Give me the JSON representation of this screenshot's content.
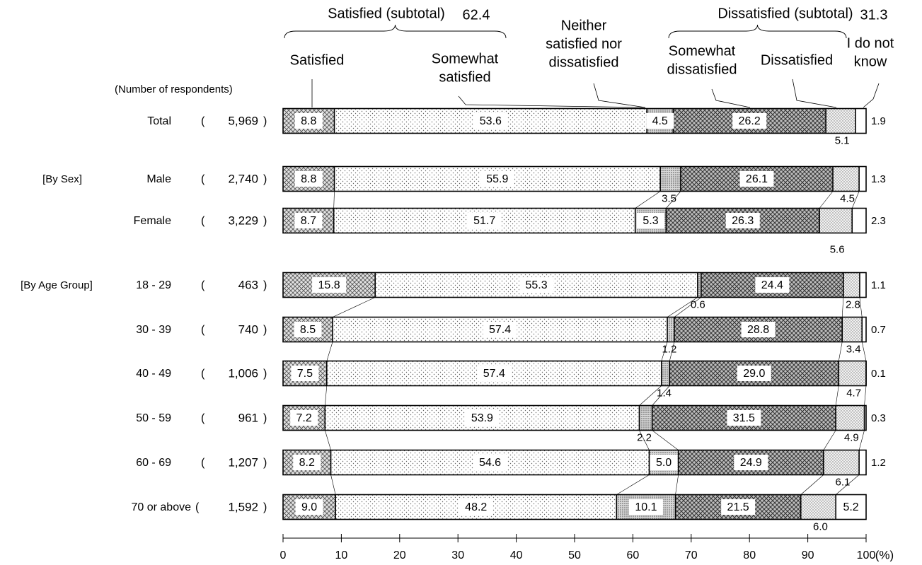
{
  "chart_data": {
    "type": "bar",
    "stacked": "100%",
    "orientation": "horizontal",
    "respondents_header": "(Number of respondents)",
    "series": [
      {
        "name": "Satisfied",
        "key": "s",
        "pattern": "cross"
      },
      {
        "name": "Somewhat satisfied",
        "key": "ss",
        "pattern": "dots"
      },
      {
        "name": "Neither satisfied nor dissatisfied",
        "key": "n",
        "pattern": "dense"
      },
      {
        "name": "Somewhat dissatisfied",
        "key": "sd",
        "pattern": "crossdark"
      },
      {
        "name": "Dissatisfied",
        "key": "d",
        "pattern": "dotsdense"
      },
      {
        "name": "I do not know",
        "key": "dk",
        "pattern": "white"
      }
    ],
    "legend_lines": [
      [
        "Satisfied"
      ],
      [
        "Somewhat",
        "satisfied"
      ],
      [
        "Neither",
        "satisfied nor",
        "dissatisfied"
      ],
      [
        "Somewhat",
        "dissatisfied"
      ],
      [
        "Dissatisfied"
      ],
      [
        "I do not",
        "know"
      ]
    ],
    "subtotals": [
      {
        "label": "Satisfied (subtotal)",
        "value": "62.4"
      },
      {
        "label": "Dissatisfied (subtotal)",
        "value": "31.3"
      }
    ],
    "groups": [
      "[By Sex]",
      "[By Age Group]"
    ],
    "rows": [
      {
        "label": "Total",
        "group": "",
        "n": "5,969",
        "values": [
          8.8,
          53.6,
          4.5,
          26.2,
          5.1,
          1.9
        ],
        "labels": [
          "8.8",
          "53.6",
          "4.5",
          "26.2",
          "5.1",
          "1.9"
        ]
      },
      {
        "label": "Male",
        "group": "[By Sex]",
        "n": "2,740",
        "values": [
          8.8,
          55.9,
          3.5,
          26.1,
          4.5,
          1.3
        ],
        "labels": [
          "8.8",
          "55.9",
          "3.5",
          "26.1",
          "4.5",
          "1.3"
        ]
      },
      {
        "label": "Female",
        "group": "",
        "n": "3,229",
        "values": [
          8.7,
          51.7,
          5.3,
          26.3,
          5.6,
          2.3
        ],
        "labels": [
          "8.7",
          "51.7",
          "5.3",
          "26.3",
          "5.6",
          "2.3"
        ]
      },
      {
        "label": "18 - 29",
        "group": "[By Age Group]",
        "n": "463",
        "values": [
          15.8,
          55.3,
          0.6,
          24.4,
          2.8,
          1.1
        ],
        "labels": [
          "15.8",
          "55.3",
          "0.6",
          "24.4",
          "2.8",
          "1.1"
        ]
      },
      {
        "label": "30 - 39",
        "group": "",
        "n": "740",
        "values": [
          8.5,
          57.4,
          1.2,
          28.8,
          3.4,
          0.7
        ],
        "labels": [
          "8.5",
          "57.4",
          "1.2",
          "28.8",
          "3.4",
          "0.7"
        ]
      },
      {
        "label": "40 - 49",
        "group": "",
        "n": "1,006",
        "values": [
          7.5,
          57.4,
          1.4,
          29.0,
          4.7,
          0.1
        ],
        "labels": [
          "7.5",
          "57.4",
          "1.4",
          "29.0",
          "4.7",
          "0.1"
        ]
      },
      {
        "label": "50 - 59",
        "group": "",
        "n": "961",
        "values": [
          7.2,
          53.9,
          2.2,
          31.5,
          4.9,
          0.3
        ],
        "labels": [
          "7.2",
          "53.9",
          "2.2",
          "31.5",
          "4.9",
          "0.3"
        ]
      },
      {
        "label": "60 - 69",
        "group": "",
        "n": "1,207",
        "values": [
          8.2,
          54.6,
          5.0,
          24.9,
          6.1,
          1.2
        ],
        "labels": [
          "8.2",
          "54.6",
          "5.0",
          "24.9",
          "6.1",
          "1.2"
        ]
      },
      {
        "label": "70 or above",
        "group": "",
        "n": "1,592",
        "values": [
          9.0,
          48.2,
          10.1,
          21.5,
          6.0,
          5.2
        ],
        "labels": [
          "9.0",
          "48.2",
          "10.1",
          "21.5",
          "6.0",
          "5.2"
        ]
      }
    ],
    "x_ticks": [
      "0",
      "10",
      "20",
      "30",
      "40",
      "50",
      "60",
      "70",
      "80",
      "90",
      "100"
    ],
    "xlim": [
      0,
      100
    ],
    "x_unit": "(%)"
  }
}
